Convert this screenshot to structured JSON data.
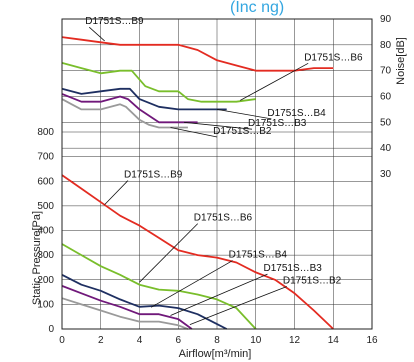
{
  "header_partial": "(Inc                  ng)",
  "chart_data": [
    {
      "type": "line",
      "name": "noise",
      "ylabel": "Noise[dB]",
      "y_ticks": [
        30,
        40,
        50,
        60,
        70,
        80,
        90
      ],
      "xlim": [
        0,
        16
      ],
      "ylim": [
        30,
        90
      ],
      "series": [
        {
          "label": "D1751S…B9",
          "color": "#e32b21",
          "points": [
            [
              0,
              83
            ],
            [
              1,
              82
            ],
            [
              2,
              81
            ],
            [
              3,
              80
            ],
            [
              4,
              80
            ],
            [
              5,
              80
            ],
            [
              6,
              80
            ],
            [
              7,
              78
            ],
            [
              8,
              74
            ],
            [
              9,
              72
            ],
            [
              10,
              70
            ],
            [
              11,
              70
            ],
            [
              12,
              70
            ],
            [
              13,
              71
            ],
            [
              14,
              71
            ]
          ]
        },
        {
          "label": "D1751S…B6",
          "color": "#79be2b",
          "points": [
            [
              0,
              73
            ],
            [
              1,
              71
            ],
            [
              2,
              69
            ],
            [
              3,
              70
            ],
            [
              3.6,
              70
            ],
            [
              4.3,
              64
            ],
            [
              5,
              62
            ],
            [
              6,
              62
            ],
            [
              6.5,
              59
            ],
            [
              7.2,
              58
            ],
            [
              8,
              58
            ],
            [
              9,
              58
            ],
            [
              10,
              59
            ]
          ]
        },
        {
          "label": "D1751S…B4",
          "color": "#1e2f61",
          "points": [
            [
              0,
              63
            ],
            [
              1,
              61
            ],
            [
              2,
              62
            ],
            [
              3,
              63
            ],
            [
              3.5,
              63
            ],
            [
              4,
              59
            ],
            [
              5,
              56
            ],
            [
              6,
              55
            ],
            [
              7,
              55
            ],
            [
              8,
              55
            ],
            [
              8.5,
              55
            ]
          ]
        },
        {
          "label": "D1751S…B3",
          "color": "#70187a",
          "points": [
            [
              0,
              61
            ],
            [
              1,
              58
            ],
            [
              2,
              58
            ],
            [
              3,
              60
            ],
            [
              3.4,
              59
            ],
            [
              4,
              55
            ],
            [
              5,
              50
            ],
            [
              6,
              50
            ],
            [
              7,
              50
            ]
          ]
        },
        {
          "label": "D1751S…B2",
          "color": "#9a9a9a",
          "points": [
            [
              0,
              59
            ],
            [
              0.5,
              57
            ],
            [
              1,
              55
            ],
            [
              2,
              55
            ],
            [
              3,
              57
            ],
            [
              3.3,
              56
            ],
            [
              4,
              51
            ],
            [
              4.5,
              49
            ],
            [
              5,
              48
            ],
            [
              6,
              48
            ],
            [
              6.5,
              48
            ]
          ]
        }
      ]
    },
    {
      "type": "line",
      "name": "static-pressure",
      "xlabel": "Airflow[m³/min]",
      "ylabel": "Static Pressure[Pa]",
      "x_ticks": [
        0,
        2,
        4,
        6,
        8,
        10,
        12,
        14,
        16
      ],
      "y_ticks": [
        0,
        100,
        200,
        300,
        400,
        500,
        600,
        700,
        800
      ],
      "xlim": [
        0,
        16
      ],
      "ylim": [
        0,
        800
      ],
      "series": [
        {
          "label": "D1751S…B9",
          "color": "#e32b21",
          "points": [
            [
              0,
              625
            ],
            [
              1,
              570
            ],
            [
              2,
              515
            ],
            [
              3,
              460
            ],
            [
              4,
              420
            ],
            [
              5,
              370
            ],
            [
              6,
              320
            ],
            [
              7,
              300
            ],
            [
              8,
              290
            ],
            [
              9,
              270
            ],
            [
              10,
              230
            ],
            [
              11,
              200
            ],
            [
              12,
              145
            ],
            [
              13,
              75
            ],
            [
              14,
              0
            ]
          ]
        },
        {
          "label": "D1751S…B6",
          "color": "#79be2b",
          "points": [
            [
              0,
              345
            ],
            [
              1,
              300
            ],
            [
              2,
              255
            ],
            [
              3,
              220
            ],
            [
              4,
              180
            ],
            [
              5,
              160
            ],
            [
              6,
              155
            ],
            [
              7,
              140
            ],
            [
              8,
              120
            ],
            [
              9,
              85
            ],
            [
              10,
              0
            ]
          ]
        },
        {
          "label": "D1751S…B4",
          "color": "#1e2f61",
          "points": [
            [
              0,
              220
            ],
            [
              1,
              180
            ],
            [
              2,
              155
            ],
            [
              3,
              120
            ],
            [
              4,
              90
            ],
            [
              5,
              95
            ],
            [
              6,
              85
            ],
            [
              7,
              60
            ],
            [
              8,
              20
            ],
            [
              8.5,
              0
            ]
          ]
        },
        {
          "label": "D1751S…B3",
          "color": "#70187a",
          "points": [
            [
              0,
              175
            ],
            [
              1,
              145
            ],
            [
              2,
              115
            ],
            [
              3,
              90
            ],
            [
              4,
              60
            ],
            [
              5,
              60
            ],
            [
              6,
              40
            ],
            [
              6.7,
              0
            ]
          ]
        },
        {
          "label": "D1751S…B2",
          "color": "#9a9a9a",
          "points": [
            [
              0,
              125
            ],
            [
              1,
              100
            ],
            [
              2,
              75
            ],
            [
              3,
              50
            ],
            [
              4,
              30
            ],
            [
              5,
              30
            ],
            [
              6,
              15
            ],
            [
              6.5,
              0
            ]
          ]
        }
      ]
    }
  ]
}
